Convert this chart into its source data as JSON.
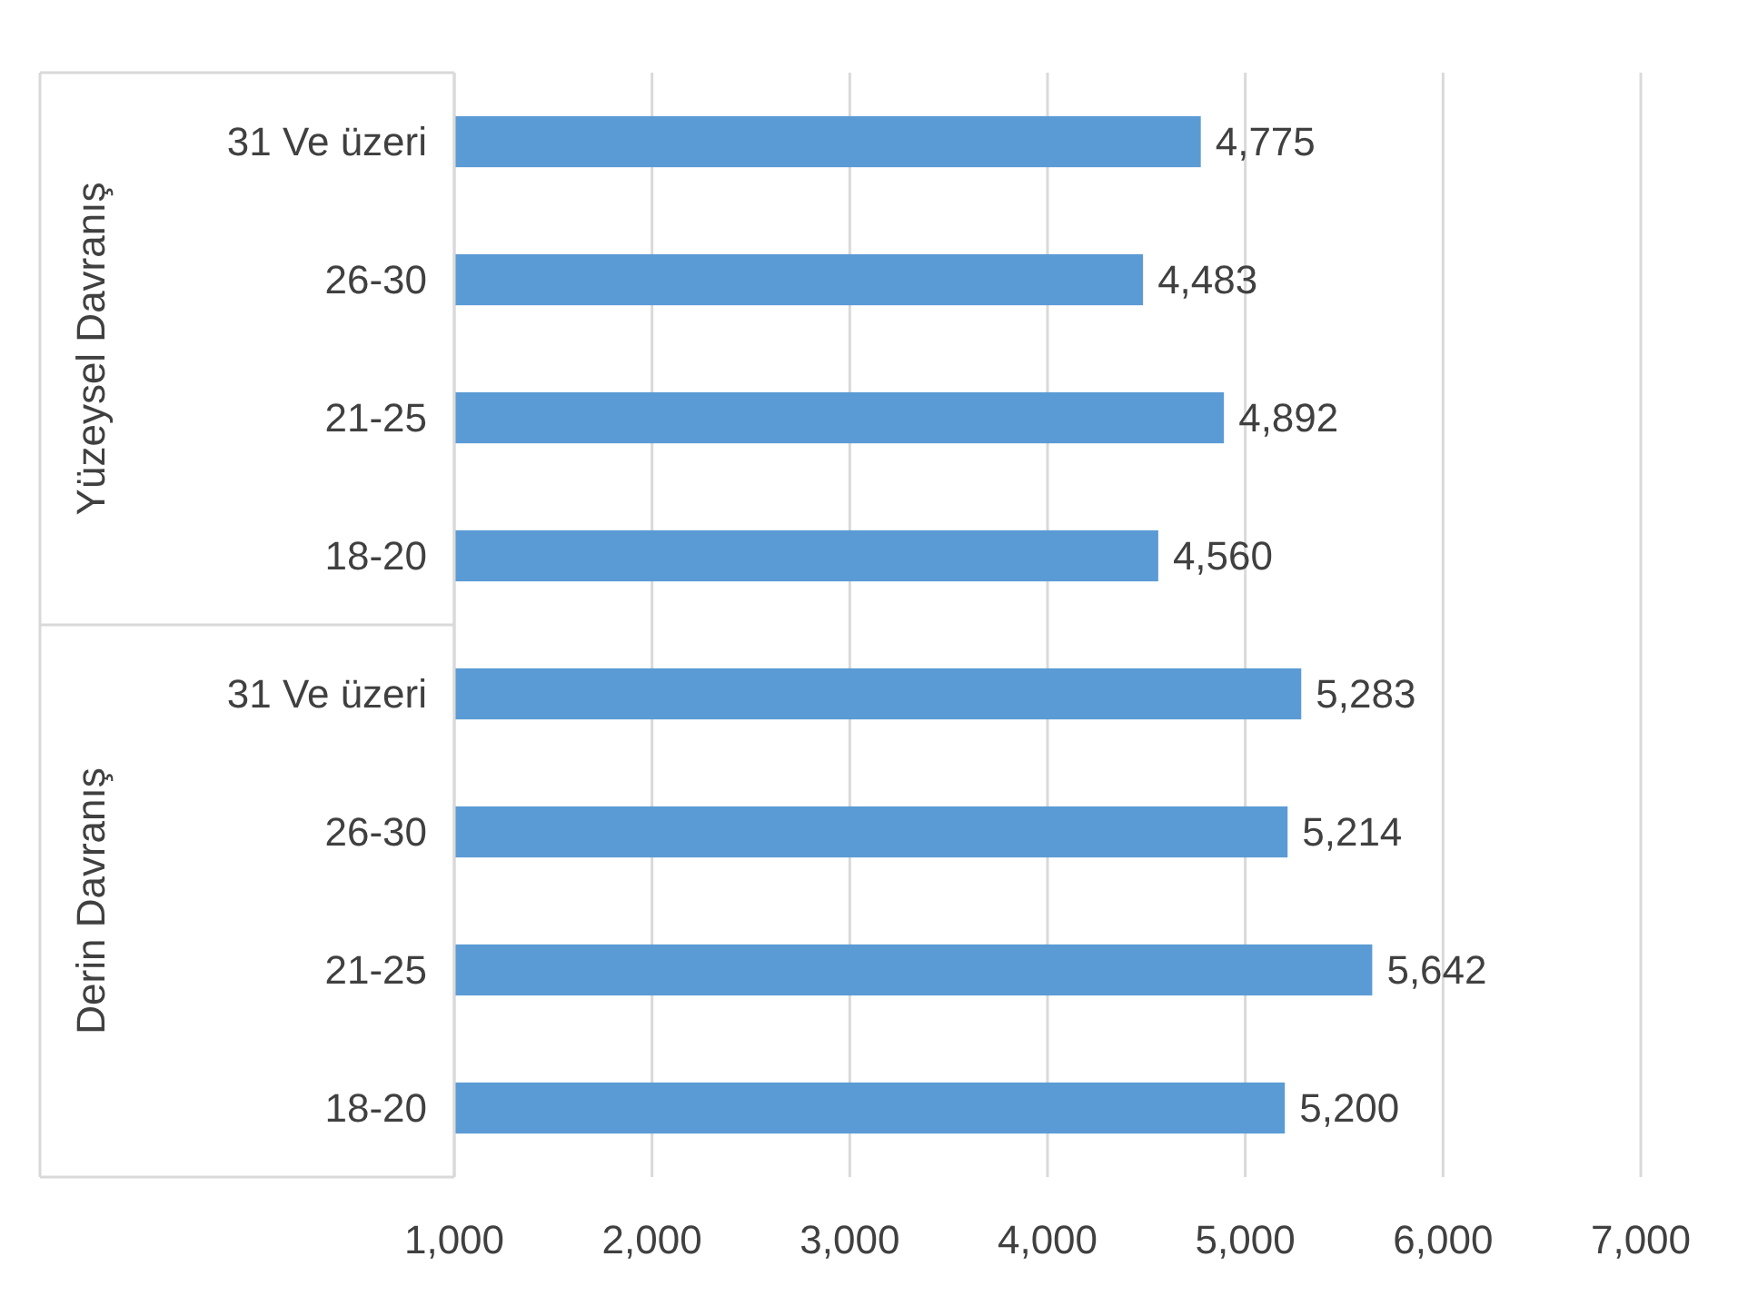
{
  "chart_data": {
    "type": "bar",
    "orientation": "horizontal",
    "categories": [
      "31 Ve üzeri",
      "26-30",
      "21-25",
      "18-20",
      "31 Ve üzeri",
      "26-30",
      "21-25",
      "18-20"
    ],
    "values": [
      4775,
      4483,
      4892,
      4560,
      5283,
      5214,
      5642,
      5200
    ],
    "color": "#5b9bd5",
    "xlim": [
      1000,
      7000
    ],
    "xticks": [
      {
        "value": 1000,
        "label": "1,000"
      },
      {
        "value": 2000,
        "label": "2,000"
      },
      {
        "value": 3000,
        "label": "3,000"
      },
      {
        "value": 4000,
        "label": "4,000"
      },
      {
        "value": 5000,
        "label": "5,000"
      },
      {
        "value": 6000,
        "label": "6,000"
      },
      {
        "value": 7000,
        "label": "7,000"
      }
    ],
    "value_labels": [
      "4,775",
      "4,483",
      "4,892",
      "4,560",
      "5,283",
      "5,214",
      "5,642",
      "5,200"
    ],
    "grid": "x",
    "annotations": [
      "Yüzeysel Davranış",
      "Derin Davranış"
    ]
  }
}
